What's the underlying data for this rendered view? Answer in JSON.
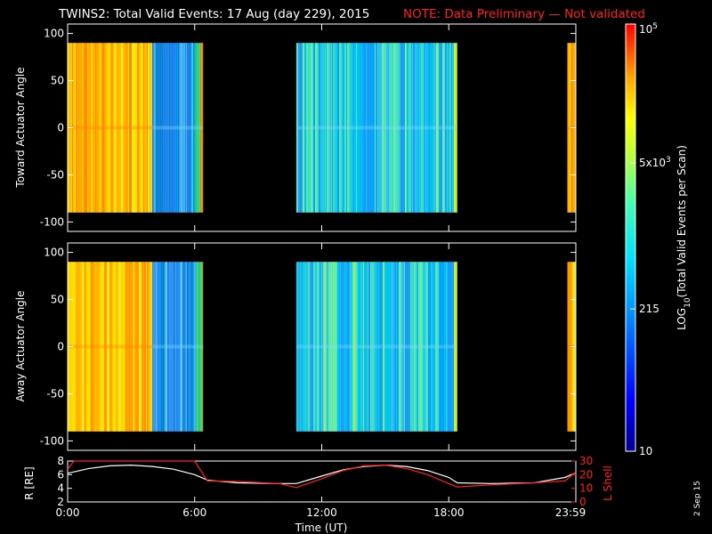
{
  "title": "TWINS2: Total Valid Events: 17 Aug (day 229), 2015",
  "note": "NOTE: Data Preliminary — Not validated",
  "stamp": "2 Sep 15",
  "colors": {
    "note": "#ff2020",
    "r_line": "#ffffff",
    "l_line": "#ff2020",
    "axis": "#ffffff"
  },
  "chart_data": [
    {
      "type": "heatmap",
      "panel": "toward",
      "ylabel": "Toward Actuator Angle",
      "ylim": [
        -110,
        110
      ],
      "yticks": [
        "100",
        "50",
        "0",
        "-50",
        "-100"
      ],
      "xlim_hours": [
        0,
        24
      ],
      "data_extent_deg": [
        -90,
        90
      ],
      "segments": [
        {
          "start_h": 0.0,
          "end_h": 4.0,
          "level": "high (orange/yellow)"
        },
        {
          "start_h": 4.0,
          "end_h": 6.4,
          "level": "low (blue)"
        },
        {
          "start_h": 10.8,
          "end_h": 18.4,
          "level": "medium (cyan/blue)"
        },
        {
          "start_h": 23.6,
          "end_h": 24.0,
          "level": "high (orange)"
        }
      ]
    },
    {
      "type": "heatmap",
      "panel": "away",
      "ylabel": "Away Actuator Angle",
      "ylim": [
        -110,
        110
      ],
      "yticks": [
        "100",
        "50",
        "0",
        "-50",
        "-100"
      ],
      "xlim_hours": [
        0,
        24
      ],
      "data_extent_deg": [
        -90,
        90
      ],
      "segments": [
        {
          "start_h": 0.0,
          "end_h": 4.0,
          "level": "high (orange/yellow)"
        },
        {
          "start_h": 4.0,
          "end_h": 6.4,
          "level": "low (blue)"
        },
        {
          "start_h": 10.8,
          "end_h": 18.4,
          "level": "medium (cyan/blue)"
        },
        {
          "start_h": 23.6,
          "end_h": 24.0,
          "level": "high (orange)"
        }
      ]
    },
    {
      "type": "line",
      "panel": "orbit",
      "ylabel": "R [RE]",
      "y2label": "L Shell",
      "ylim": [
        2,
        8
      ],
      "y2lim": [
        0,
        30
      ],
      "yticks": [
        "8",
        "6",
        "4",
        "2"
      ],
      "y2ticks": [
        "30",
        "20",
        "10",
        "0"
      ],
      "xlabel": "Time (UT)",
      "xticks": [
        "0:00",
        "6:00",
        "12:00",
        "18:00",
        "23:59"
      ],
      "series": [
        {
          "name": "R [RE]",
          "axis": "left",
          "x": [
            0,
            1,
            2,
            3,
            4,
            5,
            6,
            6.6,
            8,
            10,
            10.8,
            12,
            13,
            14,
            15,
            16,
            17,
            18,
            18.4,
            20,
            22,
            23.5,
            24
          ],
          "y": [
            6.2,
            6.9,
            7.3,
            7.4,
            7.2,
            6.8,
            6.0,
            5.2,
            4.8,
            4.7,
            4.7,
            5.8,
            6.7,
            7.2,
            7.4,
            7.2,
            6.6,
            5.6,
            4.8,
            4.7,
            4.8,
            5.6,
            6.3
          ]
        },
        {
          "name": "L Shell",
          "axis": "right",
          "x": [
            0,
            0.3,
            6.0,
            6.6,
            8,
            10,
            10.8,
            12,
            13,
            14,
            15,
            16,
            17,
            18,
            18.4,
            20,
            22,
            23.5,
            24
          ],
          "y": [
            24,
            30,
            30,
            15.5,
            15,
            13.5,
            10.5,
            17,
            23,
            26.5,
            27,
            24.5,
            20,
            13.5,
            11,
            12.5,
            14,
            15.5,
            22
          ]
        }
      ]
    }
  ],
  "colorbar": {
    "label_main": "LOG",
    "label_sub": "10",
    "label_rest": "(Total Valid Events per Scan)",
    "ticks": [
      {
        "base": "10",
        "exp": "5",
        "value": 100000
      },
      {
        "base": "5x10",
        "exp": "3",
        "value": 5000
      },
      {
        "base": "215",
        "exp": "",
        "value": 215
      },
      {
        "base": "10",
        "exp": "",
        "value": 10
      }
    ]
  }
}
